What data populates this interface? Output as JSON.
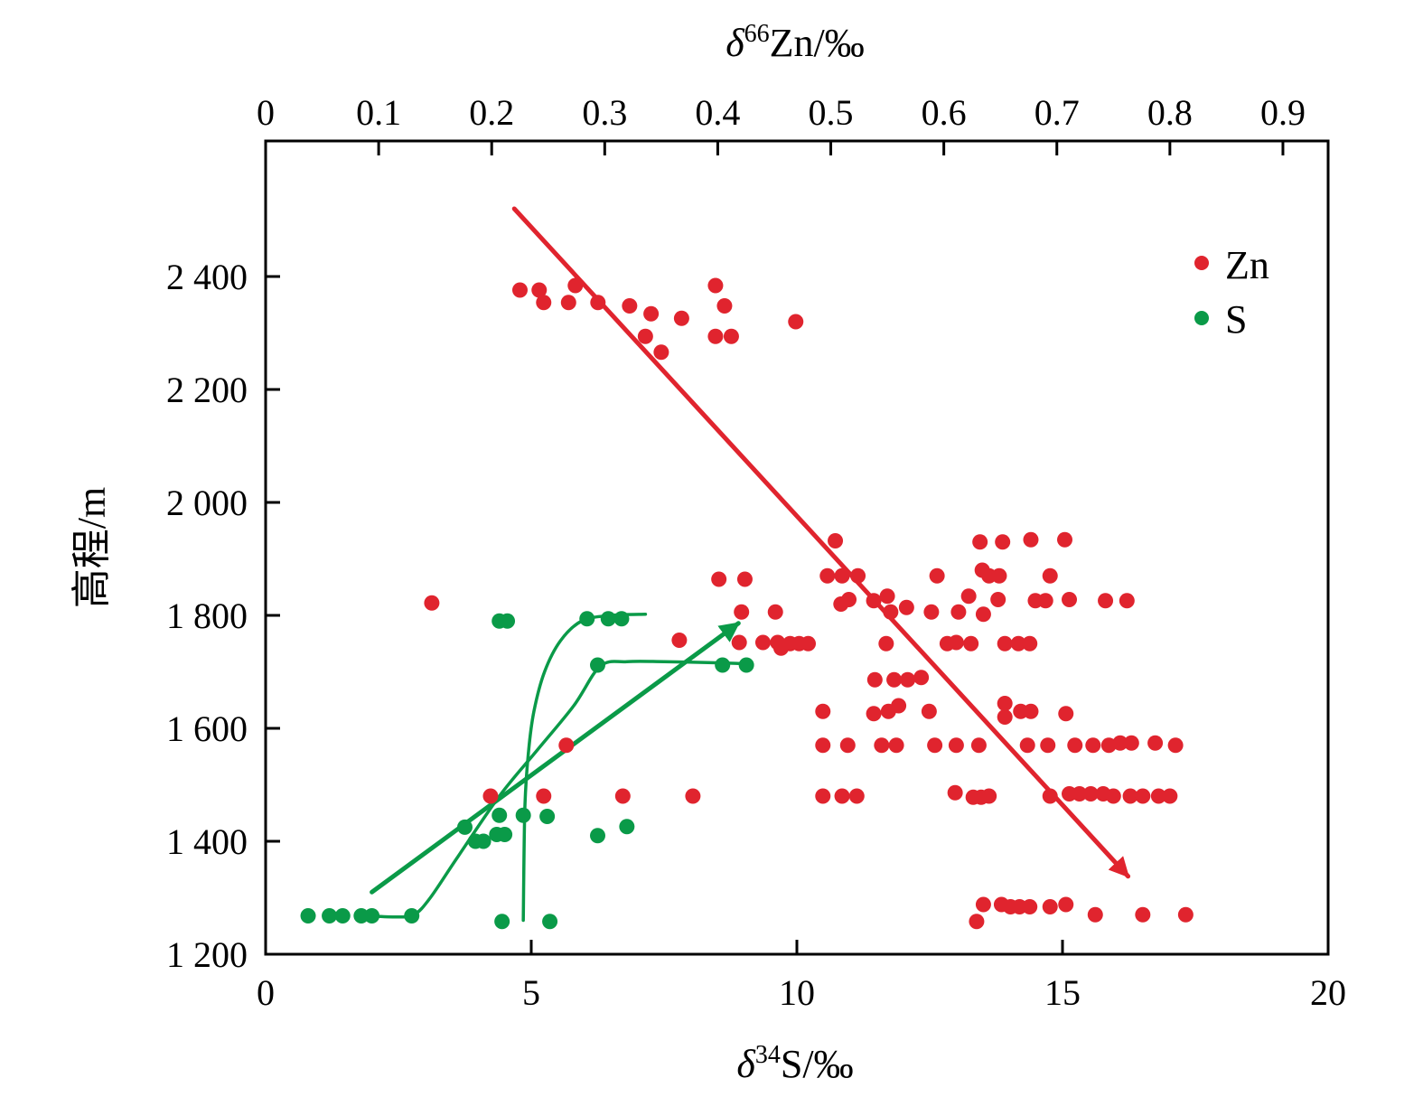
{
  "chart_data": {
    "type": "scatter",
    "top_axis": {
      "label": {
        "delta": "δ",
        "sup": "66",
        "rest": "Zn/‰"
      },
      "range": [
        0,
        0.94
      ],
      "ticks": [
        0,
        0.1,
        0.2,
        0.3,
        0.4,
        0.5,
        0.6,
        0.7,
        0.8,
        0.9
      ],
      "tick_labels": [
        "0",
        "0.1",
        "0.2",
        "0.3",
        "0.4",
        "0.5",
        "0.6",
        "0.7",
        "0.8",
        "0.9"
      ]
    },
    "x_axis": {
      "label": {
        "delta": "δ",
        "sup": "34",
        "rest": "S/‰"
      },
      "range": [
        0,
        20
      ],
      "ticks": [
        0,
        5,
        10,
        15,
        20
      ],
      "tick_labels": [
        "0",
        "5",
        "10",
        "15",
        "20"
      ]
    },
    "y_axis": {
      "label": "高程/m",
      "range": [
        1200,
        2640
      ],
      "ticks": [
        1200,
        1400,
        1600,
        1800,
        2000,
        2200,
        2400
      ],
      "tick_labels": [
        "1 200",
        "1 400",
        "1 600",
        "1 800",
        "2 000",
        "2 200",
        "2 400"
      ]
    },
    "legend": {
      "position": "top-right",
      "items": [
        {
          "name": "Zn",
          "color": "#e0242e"
        },
        {
          "name": "S",
          "color": "#0a9a48"
        }
      ]
    },
    "series": [
      {
        "name": "Zn",
        "color": "#e0242e",
        "axis": "top",
        "points": [
          [
            0.225,
            2376
          ],
          [
            0.242,
            2376
          ],
          [
            0.246,
            2354
          ],
          [
            0.268,
            2354
          ],
          [
            0.274,
            2384
          ],
          [
            0.294,
            2354
          ],
          [
            0.322,
            2348
          ],
          [
            0.341,
            2334
          ],
          [
            0.336,
            2294
          ],
          [
            0.35,
            2266
          ],
          [
            0.368,
            2326
          ],
          [
            0.398,
            2384
          ],
          [
            0.406,
            2348
          ],
          [
            0.398,
            2294
          ],
          [
            0.412,
            2294
          ],
          [
            0.469,
            2320
          ],
          [
            0.147,
            1822
          ],
          [
            0.266,
            1570
          ],
          [
            0.246,
            1480
          ],
          [
            0.199,
            1480
          ],
          [
            0.316,
            1480
          ],
          [
            0.378,
            1480
          ],
          [
            0.401,
            1864
          ],
          [
            0.424,
            1864
          ],
          [
            0.421,
            1806
          ],
          [
            0.451,
            1806
          ],
          [
            0.419,
            1752
          ],
          [
            0.44,
            1752
          ],
          [
            0.453,
            1752
          ],
          [
            0.456,
            1742
          ],
          [
            0.464,
            1750
          ],
          [
            0.472,
            1750
          ],
          [
            0.48,
            1750
          ],
          [
            0.366,
            1756
          ],
          [
            0.504,
            1932
          ],
          [
            0.497,
            1870
          ],
          [
            0.51,
            1870
          ],
          [
            0.524,
            1870
          ],
          [
            0.509,
            1820
          ],
          [
            0.516,
            1828
          ],
          [
            0.538,
            1826
          ],
          [
            0.55,
            1834
          ],
          [
            0.553,
            1806
          ],
          [
            0.567,
            1814
          ],
          [
            0.549,
            1750
          ],
          [
            0.589,
            1806
          ],
          [
            0.594,
            1870
          ],
          [
            0.613,
            1806
          ],
          [
            0.603,
            1750
          ],
          [
            0.611,
            1752
          ],
          [
            0.624,
            1750
          ],
          [
            0.622,
            1834
          ],
          [
            0.634,
            1880
          ],
          [
            0.64,
            1870
          ],
          [
            0.632,
            1930
          ],
          [
            0.652,
            1930
          ],
          [
            0.649,
            1870
          ],
          [
            0.635,
            1802
          ],
          [
            0.648,
            1828
          ],
          [
            0.654,
            1750
          ],
          [
            0.666,
            1750
          ],
          [
            0.676,
            1750
          ],
          [
            0.681,
            1826
          ],
          [
            0.69,
            1826
          ],
          [
            0.677,
            1934
          ],
          [
            0.694,
            1870
          ],
          [
            0.707,
            1934
          ],
          [
            0.711,
            1828
          ],
          [
            0.743,
            1826
          ],
          [
            0.762,
            1826
          ],
          [
            0.539,
            1686
          ],
          [
            0.556,
            1686
          ],
          [
            0.568,
            1686
          ],
          [
            0.58,
            1690
          ],
          [
            0.56,
            1640
          ],
          [
            0.551,
            1630
          ],
          [
            0.538,
            1626
          ],
          [
            0.587,
            1630
          ],
          [
            0.493,
            1630
          ],
          [
            0.493,
            1570
          ],
          [
            0.515,
            1570
          ],
          [
            0.545,
            1570
          ],
          [
            0.558,
            1570
          ],
          [
            0.592,
            1570
          ],
          [
            0.611,
            1570
          ],
          [
            0.631,
            1570
          ],
          [
            0.654,
            1644
          ],
          [
            0.654,
            1620
          ],
          [
            0.668,
            1630
          ],
          [
            0.677,
            1630
          ],
          [
            0.674,
            1570
          ],
          [
            0.692,
            1570
          ],
          [
            0.716,
            1570
          ],
          [
            0.732,
            1570
          ],
          [
            0.746,
            1570
          ],
          [
            0.756,
            1574
          ],
          [
            0.766,
            1574
          ],
          [
            0.787,
            1574
          ],
          [
            0.805,
            1570
          ],
          [
            0.708,
            1626
          ],
          [
            0.493,
            1480
          ],
          [
            0.51,
            1480
          ],
          [
            0.523,
            1480
          ],
          [
            0.61,
            1486
          ],
          [
            0.626,
            1478
          ],
          [
            0.633,
            1478
          ],
          [
            0.64,
            1480
          ],
          [
            0.694,
            1480
          ],
          [
            0.711,
            1484
          ],
          [
            0.72,
            1484
          ],
          [
            0.73,
            1484
          ],
          [
            0.741,
            1484
          ],
          [
            0.75,
            1480
          ],
          [
            0.765,
            1480
          ],
          [
            0.776,
            1480
          ],
          [
            0.79,
            1480
          ],
          [
            0.8,
            1480
          ],
          [
            0.629,
            1258
          ],
          [
            0.635,
            1288
          ],
          [
            0.651,
            1288
          ],
          [
            0.659,
            1284
          ],
          [
            0.667,
            1284
          ],
          [
            0.676,
            1284
          ],
          [
            0.694,
            1284
          ],
          [
            0.708,
            1288
          ],
          [
            0.734,
            1270
          ],
          [
            0.776,
            1270
          ],
          [
            0.814,
            1270
          ]
        ]
      },
      {
        "name": "S",
        "color": "#0a9a48",
        "axis": "bottom",
        "points": [
          [
            0.8,
            1268
          ],
          [
            1.2,
            1268
          ],
          [
            1.45,
            1268
          ],
          [
            1.8,
            1268
          ],
          [
            2.0,
            1268
          ],
          [
            2.75,
            1268
          ],
          [
            3.75,
            1425
          ],
          [
            3.95,
            1400
          ],
          [
            4.1,
            1400
          ],
          [
            4.35,
            1412
          ],
          [
            4.5,
            1412
          ],
          [
            4.4,
            1446
          ],
          [
            4.85,
            1446
          ],
          [
            5.3,
            1444
          ],
          [
            4.45,
            1258
          ],
          [
            5.35,
            1258
          ],
          [
            6.25,
            1410
          ],
          [
            6.8,
            1426
          ],
          [
            4.4,
            1790
          ],
          [
            4.55,
            1790
          ],
          [
            6.05,
            1794
          ],
          [
            6.45,
            1794
          ],
          [
            6.7,
            1794
          ],
          [
            6.25,
            1712
          ],
          [
            8.6,
            1712
          ],
          [
            9.05,
            1712
          ]
        ]
      }
    ],
    "trends": [
      {
        "series": "Zn",
        "color": "#e0242e",
        "arrow": true,
        "axis": "top",
        "points": [
          [
            0.22,
            2520
          ],
          [
            0.763,
            1338
          ]
        ]
      },
      {
        "series": "S",
        "color": "#0a9a48",
        "arrow": true,
        "axis": "bottom",
        "points": [
          [
            2.0,
            1310
          ],
          [
            8.9,
            1786
          ]
        ]
      },
      {
        "series": "S",
        "color": "#0a9a48",
        "arrow": false,
        "axis": "bottom",
        "curve": true,
        "points": [
          [
            1.9,
            1268
          ],
          [
            2.5,
            1266
          ],
          [
            2.8,
            1270
          ],
          [
            3.1,
            1300
          ],
          [
            3.6,
            1370
          ],
          [
            4.4,
            1480
          ],
          [
            5.1,
            1560
          ],
          [
            5.8,
            1640
          ],
          [
            6.3,
            1710
          ],
          [
            6.8,
            1718
          ],
          [
            7.5,
            1718
          ],
          [
            8.5,
            1716
          ],
          [
            9.1,
            1714
          ]
        ]
      },
      {
        "series": "S",
        "color": "#0a9a48",
        "arrow": false,
        "axis": "bottom",
        "curve": true,
        "points": [
          [
            4.85,
            1260
          ],
          [
            4.88,
            1460
          ],
          [
            4.95,
            1560
          ],
          [
            5.05,
            1630
          ],
          [
            5.25,
            1700
          ],
          [
            5.55,
            1755
          ],
          [
            5.95,
            1790
          ],
          [
            6.5,
            1800
          ],
          [
            7.15,
            1802
          ]
        ]
      }
    ]
  }
}
